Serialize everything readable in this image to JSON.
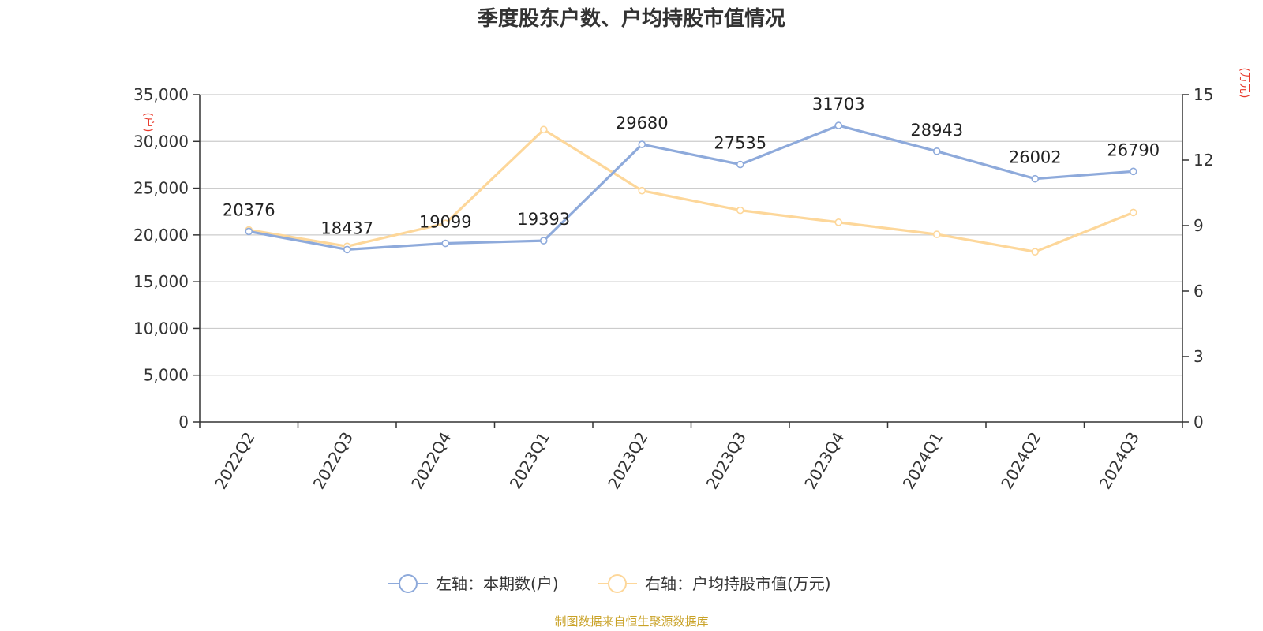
{
  "chart_data": {
    "type": "line",
    "title": "季度股东户数、户均持股市值情况",
    "categories": [
      "2022Q2",
      "2022Q3",
      "2022Q4",
      "2023Q1",
      "2023Q2",
      "2023Q3",
      "2023Q4",
      "2024Q1",
      "2024Q2",
      "2024Q3"
    ],
    "left_axis": {
      "unit_label": "(户)",
      "range": [
        0,
        35000
      ],
      "ticks": [
        "0",
        "5,000",
        "10,000",
        "15,000",
        "20,000",
        "25,000",
        "30,000",
        "35,000"
      ],
      "tick_values": [
        0,
        5000,
        10000,
        15000,
        20000,
        25000,
        30000,
        35000
      ]
    },
    "right_axis": {
      "unit_label": "(万元)",
      "range": [
        0,
        15
      ],
      "ticks": [
        "0",
        "3",
        "6",
        "9",
        "12",
        "15"
      ],
      "tick_values": [
        0,
        3,
        6,
        9,
        12,
        15
      ]
    },
    "series": [
      {
        "name": "左轴：本期数(户)",
        "axis": "left",
        "color": "#8eaadb",
        "values": [
          20376,
          18437,
          19099,
          19393,
          29680,
          27535,
          31703,
          28943,
          26002,
          26790
        ],
        "labels": [
          "20376",
          "18437",
          "19099",
          "19393",
          "29680",
          "27535",
          "31703",
          "28943",
          "26002",
          "26790"
        ]
      },
      {
        "name": "右轴：户均持股市值(万元)",
        "axis": "right",
        "color": "#fdd79a",
        "values": [
          8.8,
          8.05,
          9.1,
          13.4,
          10.6,
          9.7,
          9.15,
          8.6,
          7.8,
          9.6
        ]
      }
    ],
    "grid": true,
    "legend_position": "bottom-center"
  },
  "source": "制图数据来自恒生聚源数据库"
}
